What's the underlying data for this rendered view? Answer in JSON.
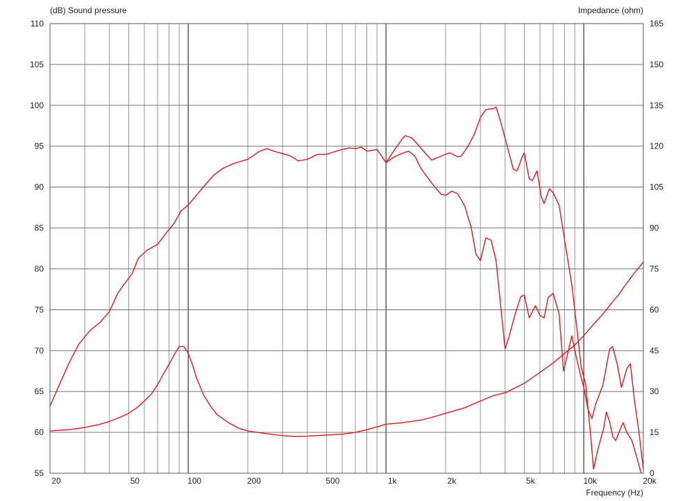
{
  "chart_data": {
    "type": "line",
    "left_axis_label": "(dB)  Sound pressure",
    "right_axis_label": "Impedance  (ohm)",
    "x_axis_label": "Frequency  (Hz)",
    "x_scale": "log",
    "xlim": [
      20,
      20000
    ],
    "ylim_left": [
      55,
      110
    ],
    "ylim_right": [
      0,
      165
    ],
    "grid": true,
    "line_color": "#e0191f",
    "x_tick_labels": [
      {
        "value": 20,
        "label": "20"
      },
      {
        "value": 50,
        "label": "50"
      },
      {
        "value": 100,
        "label": "100"
      },
      {
        "value": 200,
        "label": "200"
      },
      {
        "value": 500,
        "label": "500"
      },
      {
        "value": 1000,
        "label": "1k"
      },
      {
        "value": 2000,
        "label": "2k"
      },
      {
        "value": 5000,
        "label": "5k"
      },
      {
        "value": 10000,
        "label": "10k"
      },
      {
        "value": 20000,
        "label": "20k"
      }
    ],
    "left_ticks": [
      110,
      105,
      100,
      95,
      90,
      85,
      80,
      75,
      70,
      65,
      60,
      55
    ],
    "right_ticks": [
      165,
      150,
      135,
      120,
      105,
      90,
      75,
      60,
      45,
      30,
      15,
      0
    ],
    "series": [
      {
        "axis": "left",
        "points": [
          [
            20,
            63.2
          ],
          [
            22,
            65.5
          ],
          [
            25,
            68.5
          ],
          [
            28,
            70.8
          ],
          [
            32,
            72.5
          ],
          [
            36,
            73.5
          ],
          [
            40,
            74.8
          ],
          [
            44,
            77
          ],
          [
            48,
            78.3
          ],
          [
            52,
            79.4
          ],
          [
            56,
            81.3
          ],
          [
            62,
            82.3
          ],
          [
            70,
            83.0
          ],
          [
            78,
            84.5
          ],
          [
            85,
            85.6
          ],
          [
            92,
            87.1
          ],
          [
            100,
            87.8
          ],
          [
            110,
            89.0
          ],
          [
            120,
            90.1
          ],
          [
            135,
            91.5
          ],
          [
            150,
            92.3
          ],
          [
            170,
            92.9
          ],
          [
            200,
            93.4
          ],
          [
            230,
            94.4
          ],
          [
            250,
            94.7
          ],
          [
            270,
            94.4
          ],
          [
            300,
            94.1
          ],
          [
            330,
            93.8
          ],
          [
            360,
            93.2
          ],
          [
            400,
            93.4
          ],
          [
            450,
            94.0
          ],
          [
            500,
            94.0
          ],
          [
            560,
            94.4
          ],
          [
            650,
            94.8
          ],
          [
            700,
            94.7
          ],
          [
            750,
            94.9
          ],
          [
            800,
            94.4
          ],
          [
            900,
            94.6
          ],
          [
            1000,
            93.0
          ],
          [
            1100,
            93.7
          ],
          [
            1200,
            94.1
          ],
          [
            1300,
            94.4
          ],
          [
            1400,
            93.8
          ],
          [
            1500,
            92.3
          ],
          [
            1700,
            90.5
          ],
          [
            1900,
            89.1
          ],
          [
            2000,
            89.0
          ],
          [
            2150,
            89.5
          ],
          [
            2300,
            89.2
          ],
          [
            2500,
            87.7
          ],
          [
            2700,
            85.0
          ],
          [
            2850,
            81.8
          ],
          [
            3000,
            81.0
          ],
          [
            3200,
            83.8
          ],
          [
            3400,
            83.5
          ],
          [
            3600,
            81.0
          ],
          [
            3800,
            75.5
          ],
          [
            4000,
            70.2
          ],
          [
            4200,
            71.8
          ],
          [
            4500,
            74.5
          ],
          [
            4800,
            76.6
          ],
          [
            5000,
            76.8
          ],
          [
            5300,
            74.0
          ],
          [
            5700,
            75.5
          ],
          [
            6000,
            74.3
          ],
          [
            6300,
            74.0
          ],
          [
            6600,
            76.5
          ],
          [
            7000,
            77.0
          ],
          [
            7500,
            74.5
          ],
          [
            7900,
            67.5
          ],
          [
            8300,
            69.7
          ],
          [
            8700,
            71.8
          ],
          [
            9200,
            69.0
          ],
          [
            9700,
            66.7
          ],
          [
            10000,
            65.5
          ],
          [
            10500,
            62.8
          ],
          [
            11000,
            61.7
          ],
          [
            11500,
            63.5
          ],
          [
            12500,
            65.8
          ],
          [
            13500,
            70.2
          ],
          [
            14000,
            70.5
          ],
          [
            14800,
            68.2
          ],
          [
            15500,
            65.5
          ],
          [
            16500,
            67.8
          ],
          [
            17200,
            68.4
          ],
          [
            18000,
            64.0
          ],
          [
            19000,
            60.0
          ],
          [
            20000,
            55.5
          ]
        ]
      },
      {
        "axis": "left",
        "points": [
          [
            1000,
            93.0
          ],
          [
            1100,
            94.5
          ],
          [
            1200,
            95.8
          ],
          [
            1250,
            96.3
          ],
          [
            1350,
            96.0
          ],
          [
            1450,
            95.2
          ],
          [
            1600,
            94.0
          ],
          [
            1700,
            93.3
          ],
          [
            1900,
            93.8
          ],
          [
            2100,
            94.2
          ],
          [
            2300,
            93.7
          ],
          [
            2400,
            93.8
          ],
          [
            2600,
            95.0
          ],
          [
            2800,
            96.5
          ],
          [
            3000,
            98.5
          ],
          [
            3200,
            99.5
          ],
          [
            3500,
            99.6
          ],
          [
            3600,
            99.8
          ],
          [
            3800,
            98.0
          ],
          [
            4100,
            95.0
          ],
          [
            4400,
            92.2
          ],
          [
            4600,
            92.0
          ],
          [
            4900,
            93.8
          ],
          [
            5000,
            94.2
          ],
          [
            5300,
            91.0
          ],
          [
            5500,
            90.8
          ],
          [
            5800,
            92.0
          ],
          [
            6100,
            88.8
          ],
          [
            6300,
            88.0
          ],
          [
            6700,
            89.8
          ],
          [
            7000,
            89.3
          ],
          [
            7500,
            87.8
          ],
          [
            8000,
            83.5
          ],
          [
            8700,
            78.0
          ],
          [
            9300,
            72.0
          ],
          [
            9700,
            68.0
          ],
          [
            10200,
            66.0
          ],
          [
            10800,
            60.0
          ],
          [
            11200,
            55.5
          ],
          [
            11800,
            58.0
          ],
          [
            12600,
            60.5
          ],
          [
            13000,
            62.5
          ],
          [
            13500,
            61.3
          ],
          [
            14000,
            59.5
          ],
          [
            14500,
            59.0
          ],
          [
            15000,
            59.9
          ],
          [
            15800,
            61.2
          ],
          [
            16500,
            60.0
          ],
          [
            17500,
            59.0
          ],
          [
            18500,
            57.0
          ],
          [
            19500,
            55.0
          ]
        ]
      },
      {
        "axis": "right",
        "points": [
          [
            20,
            15.5
          ],
          [
            25,
            16
          ],
          [
            30,
            16.8
          ],
          [
            35,
            17.8
          ],
          [
            40,
            19
          ],
          [
            45,
            20.5
          ],
          [
            50,
            22
          ],
          [
            55,
            24
          ],
          [
            60,
            26.5
          ],
          [
            65,
            29
          ],
          [
            70,
            32.5
          ],
          [
            75,
            36.5
          ],
          [
            80,
            40
          ],
          [
            85,
            43.5
          ],
          [
            90,
            46.5
          ],
          [
            95,
            46.5
          ],
          [
            100,
            44
          ],
          [
            105,
            40
          ],
          [
            110,
            35
          ],
          [
            120,
            28.5
          ],
          [
            130,
            24.5
          ],
          [
            140,
            21.5
          ],
          [
            160,
            18.5
          ],
          [
            180,
            16.5
          ],
          [
            200,
            15.5
          ],
          [
            250,
            14.5
          ],
          [
            300,
            13.8
          ],
          [
            350,
            13.5
          ],
          [
            400,
            13.6
          ],
          [
            500,
            14
          ],
          [
            600,
            14.3
          ],
          [
            700,
            15
          ],
          [
            800,
            16
          ],
          [
            900,
            17
          ],
          [
            1000,
            18
          ],
          [
            1200,
            18.5
          ],
          [
            1500,
            19.5
          ],
          [
            1800,
            21
          ],
          [
            2000,
            22
          ],
          [
            2500,
            24
          ],
          [
            3000,
            26.5
          ],
          [
            3500,
            28.5
          ],
          [
            4000,
            29.5
          ],
          [
            5000,
            33
          ],
          [
            6000,
            37
          ],
          [
            7000,
            40.5
          ],
          [
            8000,
            44
          ],
          [
            9000,
            47
          ],
          [
            10000,
            50.5
          ],
          [
            11000,
            54
          ],
          [
            12000,
            57
          ],
          [
            13000,
            60
          ],
          [
            14000,
            63
          ],
          [
            15000,
            65.5
          ],
          [
            16000,
            68.5
          ],
          [
            17000,
            71
          ],
          [
            18000,
            73.5
          ],
          [
            19000,
            75.5
          ],
          [
            20000,
            77.5
          ]
        ]
      }
    ]
  }
}
